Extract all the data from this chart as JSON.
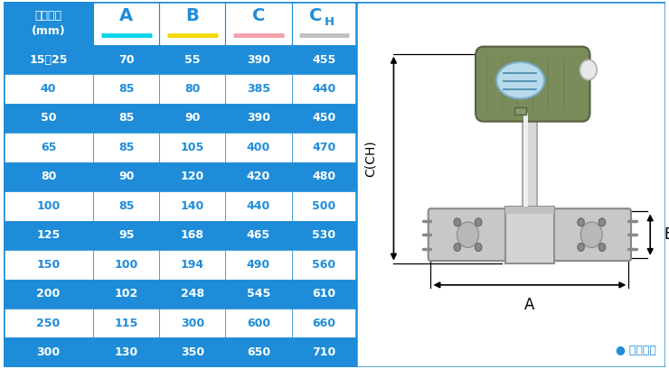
{
  "title": "仪表口径\n(mm)",
  "col_headers": [
    "A",
    "B",
    "C",
    "CH"
  ],
  "col_underline_colors": [
    "#00d4e8",
    "#f5d800",
    "#f4a0a8",
    "#c0c0c0"
  ],
  "rows": [
    {
      "label": "15～25",
      "values": [
        "70",
        "55",
        "390",
        "455"
      ],
      "bg": "#1e8cd8"
    },
    {
      "label": "40",
      "values": [
        "85",
        "80",
        "385",
        "440"
      ],
      "bg": "#ffffff"
    },
    {
      "label": "50",
      "values": [
        "85",
        "90",
        "390",
        "450"
      ],
      "bg": "#1e8cd8"
    },
    {
      "label": "65",
      "values": [
        "85",
        "105",
        "400",
        "470"
      ],
      "bg": "#ffffff"
    },
    {
      "label": "80",
      "values": [
        "90",
        "120",
        "420",
        "480"
      ],
      "bg": "#1e8cd8"
    },
    {
      "label": "100",
      "values": [
        "85",
        "140",
        "440",
        "500"
      ],
      "bg": "#ffffff"
    },
    {
      "label": "125",
      "values": [
        "95",
        "168",
        "465",
        "530"
      ],
      "bg": "#1e8cd8"
    },
    {
      "label": "150",
      "values": [
        "100",
        "194",
        "490",
        "560"
      ],
      "bg": "#ffffff"
    },
    {
      "label": "200",
      "values": [
        "102",
        "248",
        "545",
        "610"
      ],
      "bg": "#1e8cd8"
    },
    {
      "label": "250",
      "values": [
        "115",
        "300",
        "600",
        "660"
      ],
      "bg": "#ffffff"
    },
    {
      "label": "300",
      "values": [
        "130",
        "350",
        "650",
        "710"
      ],
      "bg": "#1e8cd8"
    }
  ],
  "blue": "#1e8cd8",
  "white": "#ffffff",
  "black": "#000000",
  "gray_light": "#e8e8e8",
  "diagram_bg": "#f0f8ff",
  "footnote_color": "#1e8cd8",
  "footnote": "常规仪表"
}
